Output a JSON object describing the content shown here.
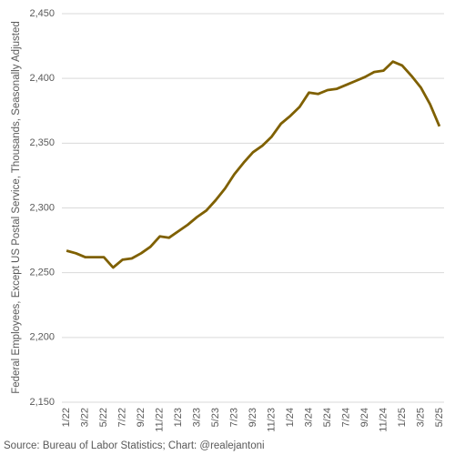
{
  "chart_data": {
    "type": "line",
    "y_label": "Federal Employees, Except US Postal Service, Thousands, Seasonally Adjusted",
    "source": "Source: Bureau of Labor Statistics; Chart: @realejantoni",
    "categories": [
      "1/22",
      null,
      "3/22",
      null,
      "5/22",
      null,
      "7/22",
      null,
      "9/22",
      null,
      "11/22",
      null,
      "1/23",
      null,
      "3/23",
      null,
      "5/23",
      null,
      "7/23",
      null,
      "9/23",
      null,
      "11/23",
      null,
      "1/24",
      null,
      "3/24",
      null,
      "5/24",
      null,
      "7/24",
      null,
      "9/24",
      null,
      "11/24",
      null,
      "1/25",
      null,
      "3/25",
      null,
      "5/25"
    ],
    "series": [
      {
        "name": "Federal Employees",
        "color": "#7f6000",
        "values": [
          2267,
          2265,
          2262,
          2262,
          2262,
          2254,
          2260,
          2261,
          2265,
          2270,
          2278,
          2277,
          2282,
          2287,
          2293,
          2298,
          2306,
          2315,
          2326,
          2335,
          2343,
          2348,
          2355,
          2365,
          2371,
          2378,
          2389,
          2388,
          2391,
          2392,
          2395,
          2398,
          2401,
          2405,
          2406,
          2413,
          2410,
          2402,
          2393,
          2380,
          2363
        ]
      }
    ],
    "ylim": [
      2150,
      2450
    ],
    "yticks": [
      {
        "value": 2150,
        "label": "2,150"
      },
      {
        "value": 2200,
        "label": "2,200"
      },
      {
        "value": 2250,
        "label": "2,250"
      },
      {
        "value": 2300,
        "label": "2,300"
      },
      {
        "value": 2350,
        "label": "2,350"
      },
      {
        "value": 2400,
        "label": "2,400"
      },
      {
        "value": 2450,
        "label": "2,450"
      }
    ],
    "grid": true
  }
}
